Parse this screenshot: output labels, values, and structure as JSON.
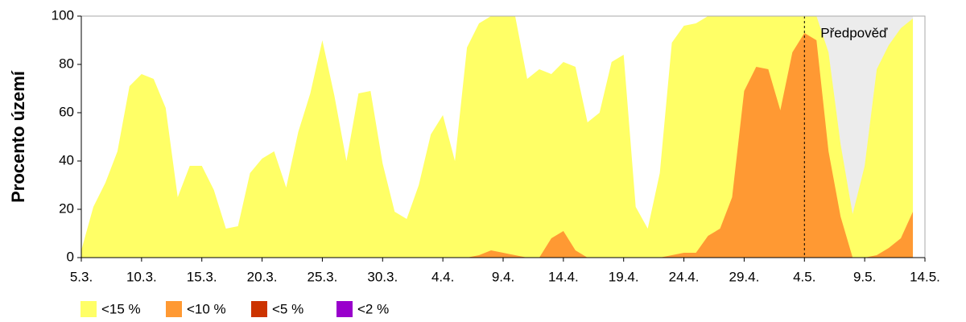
{
  "chart_data": {
    "type": "area",
    "y_label": "Procento území",
    "categories": [
      "5.3.",
      null,
      null,
      null,
      null,
      "10.3.",
      null,
      null,
      null,
      null,
      "15.3.",
      null,
      null,
      null,
      null,
      "20.3.",
      null,
      null,
      null,
      null,
      "25.3.",
      null,
      null,
      null,
      null,
      "30.3.",
      null,
      null,
      null,
      null,
      "4.4.",
      null,
      null,
      null,
      null,
      "9.4.",
      null,
      null,
      null,
      null,
      "14.4.",
      null,
      null,
      null,
      null,
      "19.4.",
      null,
      null,
      null,
      null,
      "24.4.",
      null,
      null,
      null,
      null,
      "29.4.",
      null,
      null,
      null,
      null,
      "4.5.",
      null,
      null,
      null,
      null,
      "9.5.",
      null,
      null,
      null,
      null,
      "14.5."
    ],
    "series": [
      {
        "name": "<15 %",
        "color": "#ffff66",
        "values": [
          3,
          21,
          31,
          44,
          71,
          76,
          74,
          62,
          25,
          38,
          38,
          28,
          12,
          13,
          35,
          41,
          44,
          29,
          52,
          68,
          90,
          67,
          40,
          68,
          69,
          39,
          19,
          16,
          30,
          51,
          59,
          40,
          87,
          97,
          100,
          100,
          100,
          74,
          78,
          76,
          81,
          79,
          56,
          60,
          81,
          84,
          21,
          12,
          35,
          89,
          96,
          97,
          100,
          100,
          100,
          100,
          100,
          100,
          100,
          100,
          100,
          100,
          85,
          47,
          18,
          38,
          78,
          88,
          95,
          99,
          null
        ]
      },
      {
        "name": "<10 %",
        "color": "#ff9933",
        "values": [
          0,
          0,
          0,
          0,
          0,
          0,
          0,
          0,
          0,
          0,
          0,
          0,
          0,
          0,
          0,
          0,
          0,
          0,
          0,
          0,
          0,
          0,
          0,
          0,
          0,
          0,
          0,
          0,
          0,
          0,
          0,
          0,
          0,
          1,
          3,
          2,
          1,
          0,
          0,
          8,
          11,
          3,
          0,
          0,
          0,
          0,
          0,
          0,
          0,
          1,
          2,
          2,
          9,
          12,
          25,
          69,
          79,
          78,
          61,
          85,
          93,
          90,
          44,
          17,
          0,
          0,
          1,
          4,
          8,
          19,
          null
        ]
      },
      {
        "name": "<5 %",
        "color": "#cc3300",
        "values": [
          0,
          0,
          0,
          0,
          0,
          0,
          0,
          0,
          0,
          0,
          0,
          0,
          0,
          0,
          0,
          0,
          0,
          0,
          0,
          0,
          0,
          0,
          0,
          0,
          0,
          0,
          0,
          0,
          0,
          0,
          0,
          0,
          0,
          0,
          0,
          0,
          0,
          0,
          0,
          0,
          0,
          0,
          0,
          0,
          0,
          0,
          0,
          0,
          0,
          0,
          0,
          0,
          0,
          0,
          0,
          0,
          0,
          0,
          0,
          0,
          0,
          0,
          0,
          0,
          0,
          0,
          0,
          0,
          0,
          0,
          null
        ]
      },
      {
        "name": "<2 %",
        "color": "#9900cc",
        "values": [
          0,
          0,
          0,
          0,
          0,
          0,
          0,
          0,
          0,
          0,
          0,
          0,
          0,
          0,
          0,
          0,
          0,
          0,
          0,
          0,
          0,
          0,
          0,
          0,
          0,
          0,
          0,
          0,
          0,
          0,
          0,
          0,
          0,
          0,
          0,
          0,
          0,
          0,
          0,
          0,
          0,
          0,
          0,
          0,
          0,
          0,
          0,
          0,
          0,
          0,
          0,
          0,
          0,
          0,
          0,
          0,
          0,
          0,
          0,
          0,
          0,
          0,
          0,
          0,
          0,
          0,
          0,
          0,
          0,
          0,
          null
        ]
      }
    ],
    "forecast": {
      "label": "Předpověď",
      "start": "4.5."
    },
    "ylim": [
      0,
      100
    ],
    "yticks": [
      0,
      20,
      40,
      60,
      80,
      100
    ]
  }
}
